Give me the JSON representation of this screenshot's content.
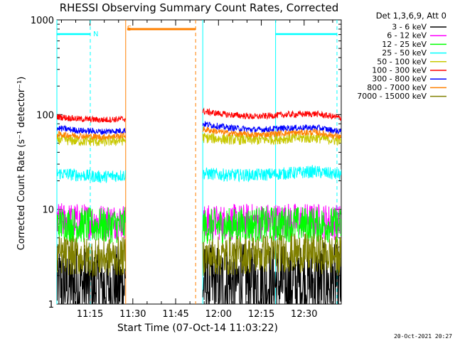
{
  "chart_data": {
    "type": "line",
    "title": "RHESSI Observing Summary Count Rates, Corrected",
    "xlabel": "Start Time (07-Oct-14 11:03:22)",
    "ylabel": "Corrected Count Rate (s⁻¹ detector⁻¹)",
    "x_ticks": [
      "11:15",
      "11:30",
      "11:45",
      "12:00",
      "12:15",
      "12:30"
    ],
    "x_tick_minutes": [
      15,
      30,
      45,
      60,
      75,
      90
    ],
    "xlim_minutes": [
      3.4,
      103.0
    ],
    "y_scale": "log",
    "ylim": [
      1,
      1000
    ],
    "y_ticks": [
      "1",
      "10",
      "100",
      "1000"
    ],
    "y_tick_values": [
      1,
      10,
      100,
      1000
    ],
    "legend_header": "Det 1,3,6,9, Att 0",
    "legend_position": "right",
    "date_stamp": "20-Oct-2021 20:27",
    "observing_segments": [
      [
        3.4,
        27.5
      ],
      [
        54.5,
        103.0
      ]
    ],
    "series": [
      {
        "name": "3 - 6 keV",
        "color": "#000000",
        "values": [
          1.6,
          1.6,
          1.5,
          1.6,
          1.6,
          1.6,
          1.7,
          1.6,
          1.7,
          1.6
        ],
        "noise": 0.45
      },
      {
        "name": "6 - 12 keV",
        "color": "#ff00ff",
        "values": [
          7.6,
          7.5,
          7.4,
          7.5,
          7.2,
          7.3,
          7.5,
          7.6,
          7.5,
          7.3
        ],
        "noise": 0.2
      },
      {
        "name": "12 - 25 keV",
        "color": "#00ff00",
        "values": [
          7.0,
          6.8,
          6.7,
          6.8,
          6.6,
          6.7,
          6.9,
          7.0,
          6.9,
          6.8
        ],
        "noise": 0.2
      },
      {
        "name": "25 - 50 keV",
        "color": "#00ffff",
        "values": [
          24,
          23,
          22,
          23,
          24,
          23,
          23,
          24,
          25,
          23
        ],
        "noise": 0.07
      },
      {
        "name": "50 - 100 keV",
        "color": "#c8c800",
        "values": [
          55,
          53,
          52,
          54,
          57,
          55,
          54,
          56,
          57,
          53
        ],
        "noise": 0.06
      },
      {
        "name": "100 - 300 keV",
        "color": "#ff0000",
        "values": [
          95,
          90,
          88,
          90,
          108,
          100,
          95,
          100,
          102,
          92
        ],
        "noise": 0.035
      },
      {
        "name": "300 - 800 keV",
        "color": "#0000ff",
        "values": [
          72,
          68,
          66,
          68,
          80,
          73,
          69,
          72,
          73,
          66
        ],
        "noise": 0.035
      },
      {
        "name": "800 - 7000 keV",
        "color": "#ff8000",
        "values": [
          62,
          60,
          58,
          60,
          70,
          64,
          61,
          64,
          65,
          58
        ],
        "noise": 0.035
      },
      {
        "name": "7000 - 15000 keV",
        "color": "#808000",
        "values": [
          3.3,
          3.2,
          3.1,
          3.2,
          3.2,
          3.2,
          3.4,
          3.5,
          3.4,
          3.2
        ],
        "noise": 0.22
      }
    ],
    "series_x_minutes": [
      3.4,
      11.0,
      19.0,
      27.5,
      54.5,
      63.0,
      73.0,
      84.0,
      94.0,
      103.0
    ],
    "annotations": {
      "markers": [
        {
          "label": "N",
          "color": "#00ffff",
          "x_minutes": 15.1
        },
        {
          "label": "S",
          "color": "#ff8000",
          "x_minutes": 28.0
        }
      ],
      "vertical_lines": [
        {
          "x_minutes": 3.4,
          "color": "#00ffff",
          "style": "solid"
        },
        {
          "x_minutes": 15.1,
          "color": "#00ffff",
          "style": "dashed"
        },
        {
          "x_minutes": 27.5,
          "color": "#ff8000",
          "style": "solid"
        },
        {
          "x_minutes": 52.0,
          "color": "#ff8000",
          "style": "dashed"
        },
        {
          "x_minutes": 54.5,
          "color": "#00ffff",
          "style": "solid"
        },
        {
          "x_minutes": 80.0,
          "color": "#00ffff",
          "style": "solid"
        },
        {
          "x_minutes": 101.5,
          "color": "#00ffff",
          "style": "dashed"
        }
      ],
      "night_bars": [
        {
          "x_minutes": [
            3.4,
            15.1
          ],
          "color": "#00ffff"
        },
        {
          "x_minutes": [
            80.0,
            101.5
          ],
          "color": "#00ffff"
        }
      ],
      "saa_bars": [
        {
          "x_minutes": [
            28.0,
            52.0
          ],
          "color": "#ff8000"
        }
      ]
    }
  }
}
